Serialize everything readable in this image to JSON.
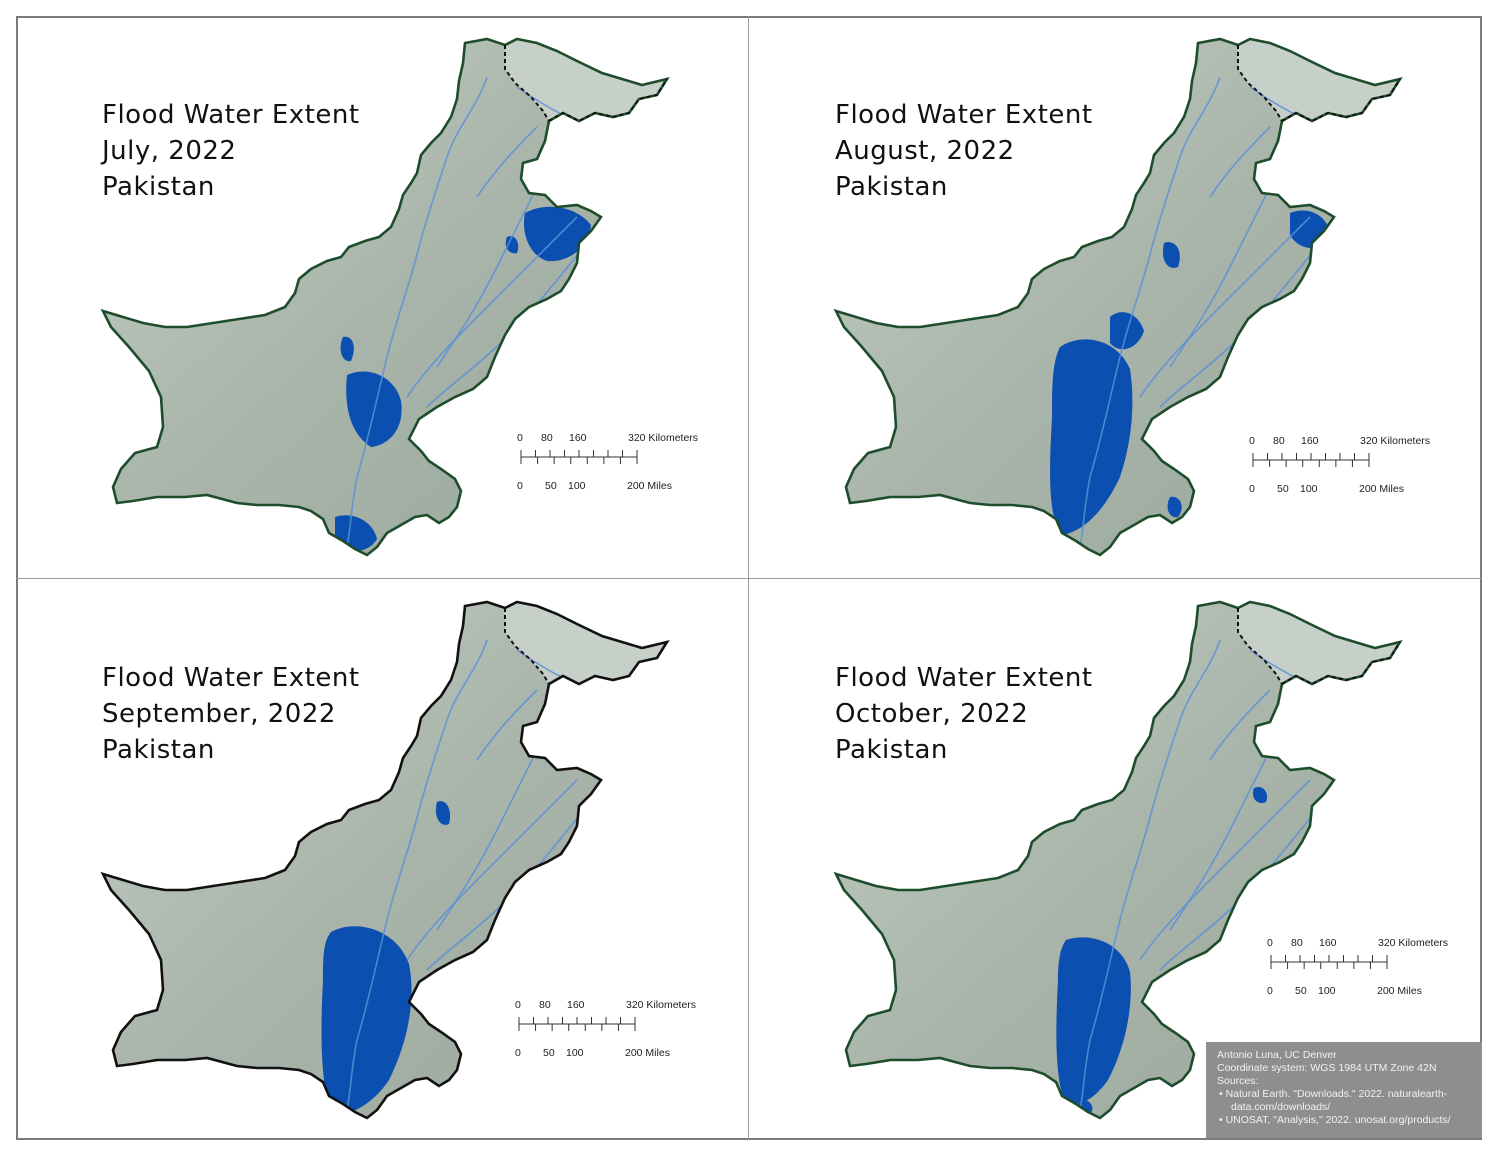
{
  "panels": [
    {
      "title_line1": "Flood Water Extent",
      "title_line2": "July, 2022",
      "title_line3": "Pakistan",
      "border_color": "#1e4d2b"
    },
    {
      "title_line1": "Flood Water Extent",
      "title_line2": "August, 2022",
      "title_line3": "Pakistan",
      "border_color": "#1e4d2b"
    },
    {
      "title_line1": "Flood Water Extent",
      "title_line2": "September, 2022",
      "title_line3": "Pakistan",
      "border_color": "#111111"
    },
    {
      "title_line1": "Flood Water Extent",
      "title_line2": "October, 2022",
      "title_line3": "Pakistan",
      "border_color": "#1e4d2b"
    }
  ],
  "scale_bar": {
    "km_ticks": [
      "0",
      "80",
      "160",
      "320 Kilometers"
    ],
    "mile_ticks": [
      "0",
      "50",
      "100",
      "200 Miles"
    ]
  },
  "credits": {
    "author": "Antonio Luna, UC Denver",
    "coordinate_system": "Coordinate system: WGS 1984 UTM Zone 42N",
    "sources_label": "Sources:",
    "source_1a": "Natural Earth. \"Downloads.\" 2022. naturalearth-",
    "source_1b": "data.com/downloads/",
    "source_2": "UNOSAT, \"Analysis,\" 2022. unosat.org/products/"
  },
  "colors": {
    "land": "#a9b5aa",
    "flood_water": "#0b4fb0",
    "river": "#5b8fd8",
    "disputed_boundary": "#111111"
  }
}
